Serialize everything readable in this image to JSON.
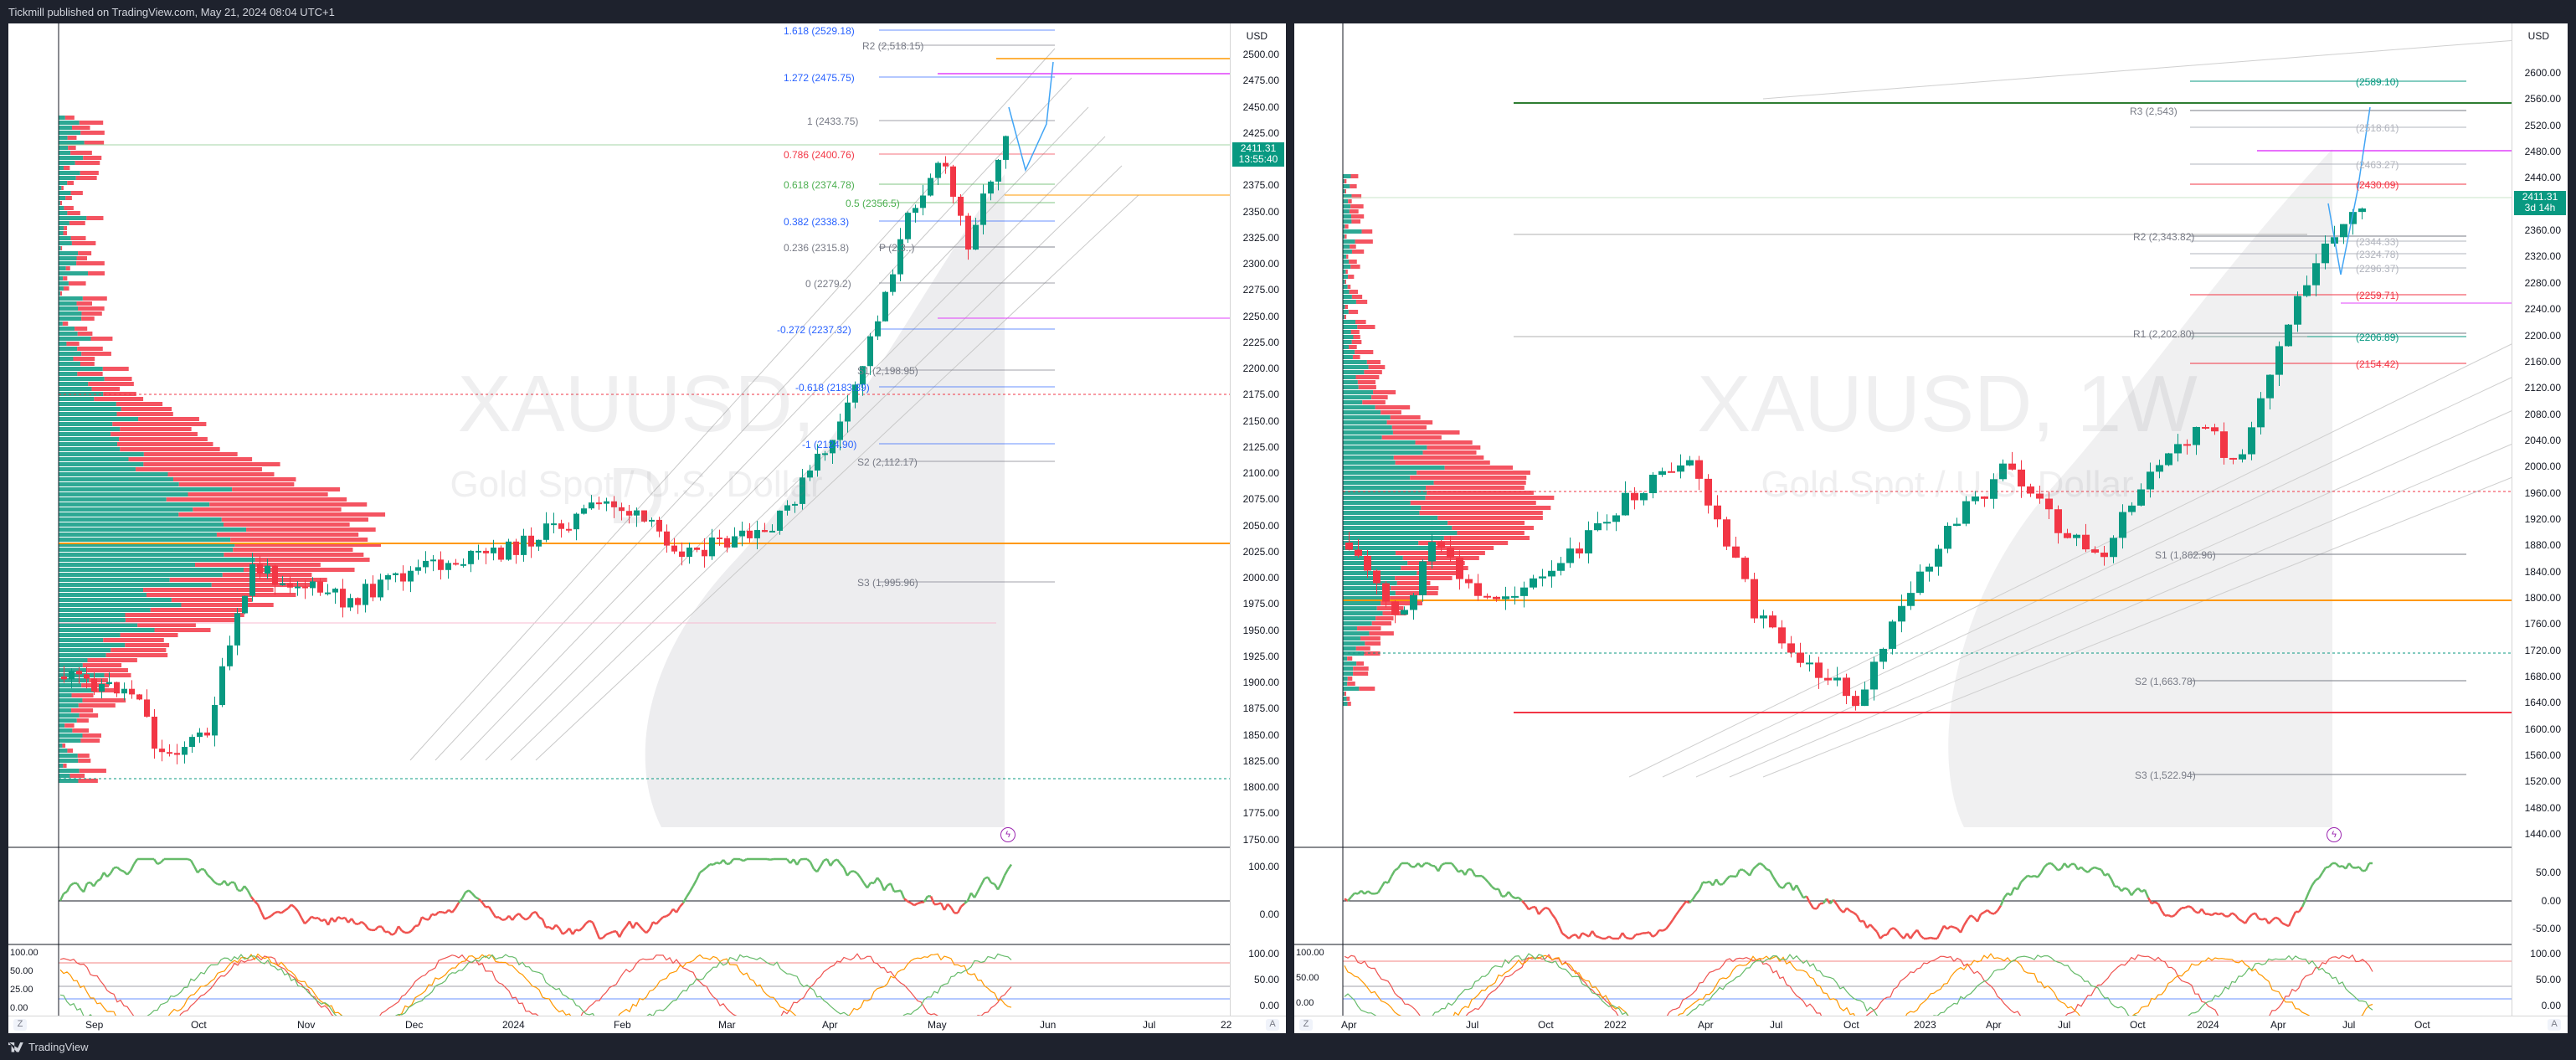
{
  "header": {
    "published_text": "Tickmill published on TradingView.com, May 21, 2024 08:04 UTC+1"
  },
  "footer": {
    "brand": "TradingView"
  },
  "colors": {
    "up": "#089981",
    "down": "#f23645",
    "fib_blue": "#2962ff",
    "pivot_gray": "#787b86",
    "magenta": "#e040fb",
    "orange": "#ff9800"
  },
  "daily": {
    "symbol_watermark": "XAUUSD, D",
    "desc_watermark": "Gold Spot / U.S. Dollar",
    "currency": "USD",
    "price_ticks": [
      "2500.00",
      "2475.00",
      "2450.00",
      "2425.00",
      "2400.00",
      "2375.00",
      "2350.00",
      "2325.00",
      "2300.00",
      "2275.00",
      "2250.00",
      "2225.00",
      "2200.00",
      "2175.00",
      "2150.00",
      "2125.00",
      "2100.00",
      "2075.00",
      "2050.00",
      "2025.00",
      "2000.00",
      "1975.00",
      "1950.00",
      "1925.00",
      "1900.00",
      "1875.00",
      "1850.00",
      "1825.00",
      "1800.00",
      "1775.00",
      "1750.00"
    ],
    "last_price": "2411.31",
    "countdown": "13:55:40",
    "fib_labels": [
      {
        "text": "1.618 (2529.18)",
        "color": "#2962ff"
      },
      {
        "text": "R2 (2,518.15)",
        "color": "#787b86"
      },
      {
        "text": "1.272 (2475.75)",
        "color": "#2962ff"
      },
      {
        "text": "1 (2433.75)",
        "color": "#787b86"
      },
      {
        "text": "0.786 (2400.76)",
        "color": "#f23645"
      },
      {
        "text": "0.618 (2374.78)",
        "color": "#4caf50"
      },
      {
        "text": "0.5 (2356.5)",
        "color": "#4caf50"
      },
      {
        "text": "0.382 (2338.3)",
        "color": "#2962ff"
      },
      {
        "text": "0.236 (2315.8)",
        "color": "#787b86"
      },
      {
        "text": "P (2,3..)",
        "color": "#787b86"
      },
      {
        "text": "0 (2279.2)",
        "color": "#787b86"
      },
      {
        "text": "-0.272 (2237.32)",
        "color": "#2962ff"
      },
      {
        "text": "S1 (2,198.95)",
        "color": "#787b86"
      },
      {
        "text": "-0.618 (2183.89)",
        "color": "#2962ff"
      },
      {
        "text": "-1 (2124.90)",
        "color": "#2962ff"
      },
      {
        "text": "S2 (2,112.17)",
        "color": "#787b86"
      },
      {
        "text": "S3 (1,995.96)",
        "color": "#787b86"
      }
    ],
    "time_ticks": [
      "Sep",
      "Oct",
      "Nov",
      "Dec",
      "2024",
      "Feb",
      "Mar",
      "Apr",
      "May",
      "Jun",
      "Jul",
      "22"
    ],
    "rsi_ticks": [
      "100.00",
      "0.00"
    ],
    "stoch_ticks": [
      "100.00",
      "50.00",
      "25.00",
      "0.00"
    ],
    "stoch_right_ticks": [
      "100.00",
      "50.00",
      "0.00"
    ]
  },
  "weekly": {
    "symbol_watermark": "XAUUSD, 1W",
    "desc_watermark": "Gold Spot / U.S. Dollar",
    "currency": "USD",
    "price_ticks": [
      "2600.00",
      "2560.00",
      "2520.00",
      "2480.00",
      "2440.00",
      "2400.00",
      "2360.00",
      "2320.00",
      "2280.00",
      "2240.00",
      "2200.00",
      "2160.00",
      "2120.00",
      "2080.00",
      "2040.00",
      "2000.00",
      "1960.00",
      "1920.00",
      "1880.00",
      "1840.00",
      "1800.00",
      "1760.00",
      "1720.00",
      "1680.00",
      "1640.00",
      "1600.00",
      "1560.00",
      "1520.00",
      "1480.00",
      "1440.00"
    ],
    "last_price": "2411.31",
    "countdown": "3d 14h",
    "level_labels": [
      {
        "text": "(2589.10)",
        "color": "#089981"
      },
      {
        "text": "R3 (2,543)",
        "color": "#787b86"
      },
      {
        "text": "(2518.61)",
        "color": "#b2b5be"
      },
      {
        "text": "(2463.27)",
        "color": "#b2b5be"
      },
      {
        "text": "(2430.09)",
        "color": "#f23645"
      },
      {
        "text": "R2 (2,343.82)",
        "color": "#787b86"
      },
      {
        "text": "(2344.33)",
        "color": "#b2b5be"
      },
      {
        "text": "(2324.78)",
        "color": "#b2b5be"
      },
      {
        "text": "(2296.37)",
        "color": "#b2b5be"
      },
      {
        "text": "(2259.71)",
        "color": "#f23645"
      },
      {
        "text": "R1 (2,202.80)",
        "color": "#787b86"
      },
      {
        "text": "(2206.89)",
        "color": "#089981"
      },
      {
        "text": "(2154.42)",
        "color": "#f23645"
      },
      {
        "text": "S1 (1,862.96)",
        "color": "#787b86"
      },
      {
        "text": "S2 (1,663.78)",
        "color": "#787b86"
      },
      {
        "text": "S3 (1,522.94)",
        "color": "#787b86"
      }
    ],
    "time_ticks": [
      "Apr",
      "Jul",
      "Oct",
      "2022",
      "Apr",
      "Jul",
      "Oct",
      "2023",
      "Apr",
      "Jul",
      "Oct",
      "2024",
      "Apr",
      "Jul",
      "Oct"
    ],
    "rsi_ticks": [
      "50.00",
      "0.00",
      "-50.00"
    ],
    "stoch_ticks": [
      "100.00",
      "50.00",
      "0.00"
    ],
    "stoch_right_ticks": [
      "100.00",
      "50.00",
      "0.00"
    ]
  },
  "buttons": {
    "zoom": "Z",
    "auto": "A"
  }
}
